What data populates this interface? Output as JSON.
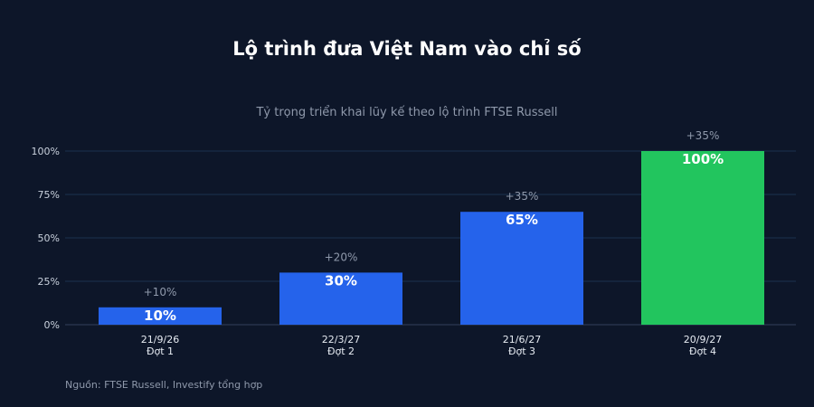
{
  "chart_data": {
    "type": "bar",
    "title": "Lộ trình đưa Việt Nam vào chỉ số",
    "subtitle": "Tỷ trọng triển khai lũy kế theo lộ trình FTSE Russell",
    "categories": [
      [
        "21/9/26",
        "Đợt 1"
      ],
      [
        "22/3/27",
        "Đợt 2"
      ],
      [
        "21/6/27",
        "Đợt 3"
      ],
      [
        "20/9/27",
        "Đợt 4"
      ]
    ],
    "values": [
      10,
      30,
      65,
      100
    ],
    "value_labels": [
      "10%",
      "30%",
      "65%",
      "100%"
    ],
    "increments": [
      "+10%",
      "+20%",
      "+35%",
      "+35%"
    ],
    "ylim": [
      0,
      100
    ],
    "yticks": [
      0,
      25,
      50,
      75,
      100
    ],
    "ytick_labels": [
      "0%",
      "25%",
      "50%",
      "75%",
      "100%"
    ],
    "grid": true,
    "bar_colors": [
      "#2563eb",
      "#2563eb",
      "#2563eb",
      "#22c55e"
    ]
  },
  "source_note": "Nguồn: FTSE Russell, Investify tổng hợp"
}
